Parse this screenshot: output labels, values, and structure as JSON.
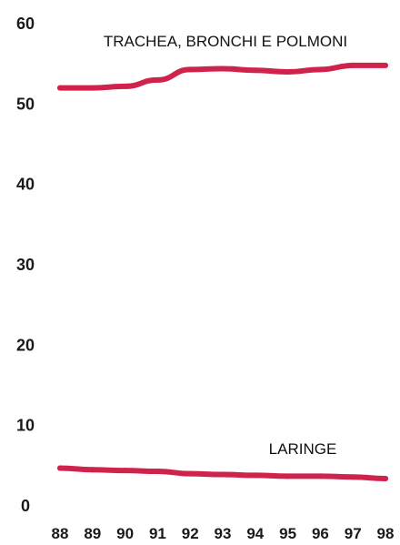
{
  "chart_data": {
    "type": "line",
    "title": "",
    "xlabel": "",
    "ylabel": "",
    "x": [
      "88",
      "89",
      "90",
      "91",
      "92",
      "93",
      "94",
      "95",
      "96",
      "97",
      "98"
    ],
    "ylim": [
      0,
      60
    ],
    "yticks": [
      "0",
      "10",
      "20",
      "30",
      "40",
      "50",
      "60"
    ],
    "grid": false,
    "line_color": "#d0234c",
    "series": [
      {
        "name": "TRACHEA, BRONCHI E POLMONI",
        "values": [
          52.0,
          52.0,
          52.2,
          53.0,
          54.3,
          54.4,
          54.2,
          54.0,
          54.3,
          54.8,
          54.8
        ]
      },
      {
        "name": "LARINGE",
        "values": [
          4.7,
          4.5,
          4.4,
          4.3,
          4.0,
          3.9,
          3.8,
          3.7,
          3.7,
          3.6,
          3.4
        ]
      }
    ]
  }
}
